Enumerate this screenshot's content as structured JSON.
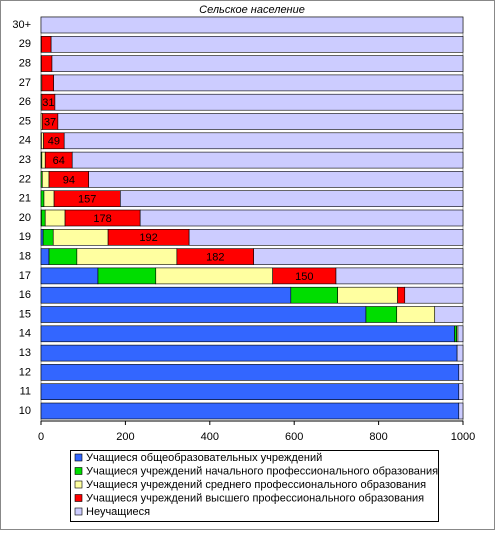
{
  "chart_data": {
    "type": "stacked-barh",
    "title": "Сельское население",
    "categories": [
      "10",
      "11",
      "12",
      "13",
      "14",
      "15",
      "16",
      "17",
      "18",
      "19",
      "20",
      "21",
      "22",
      "23",
      "24",
      "25",
      "26",
      "27",
      "28",
      "29",
      "30+"
    ],
    "series": [
      {
        "name": "Учащиеся общеобразовательных учреждений",
        "color": "#3366ff",
        "values": [
          990,
          990,
          990,
          986,
          980,
          770,
          592,
          135,
          19,
          5,
          1,
          0,
          0,
          0,
          0,
          0,
          0,
          0,
          0,
          0,
          0
        ]
      },
      {
        "name": "Учащиеся учреждений начального профессионального образования",
        "color": "#00dd00",
        "values": [
          0,
          0,
          0,
          0,
          5,
          73,
          111,
          137,
          66,
          24,
          9,
          7,
          3,
          2,
          1,
          0,
          0,
          0,
          0,
          0,
          0
        ]
      },
      {
        "name": "Учащиеся учреждений среднего профессионального образования",
        "color": "#ffffa0",
        "values": [
          0,
          0,
          0,
          0,
          3,
          90,
          142,
          277,
          237,
          130,
          47,
          24,
          16,
          8,
          5,
          3,
          2,
          2,
          1,
          1,
          0
        ]
      },
      {
        "name": "Учащиеся учреждений высшего профессионального образования",
        "color": "#ff0000",
        "values": [
          0,
          0,
          0,
          0,
          0,
          0,
          17,
          150,
          182,
          192,
          178,
          157,
          94,
          64,
          49,
          37,
          31,
          28,
          25,
          23,
          0
        ],
        "value_labels": [
          null,
          null,
          null,
          null,
          null,
          null,
          null,
          "150",
          "182",
          "192",
          "178",
          "157",
          "94",
          "64",
          "49",
          "37",
          "31",
          null,
          null,
          null,
          null
        ]
      },
      {
        "name": "Неучащиеся",
        "color": "#ccccff",
        "values": [
          10,
          10,
          10,
          14,
          12,
          67,
          138,
          301,
          496,
          649,
          765,
          812,
          887,
          926,
          945,
          960,
          967,
          970,
          974,
          976,
          1000
        ]
      }
    ],
    "xlim": [
      0,
      1000
    ],
    "xticks": [
      0,
      200,
      400,
      600,
      800,
      1000
    ]
  }
}
